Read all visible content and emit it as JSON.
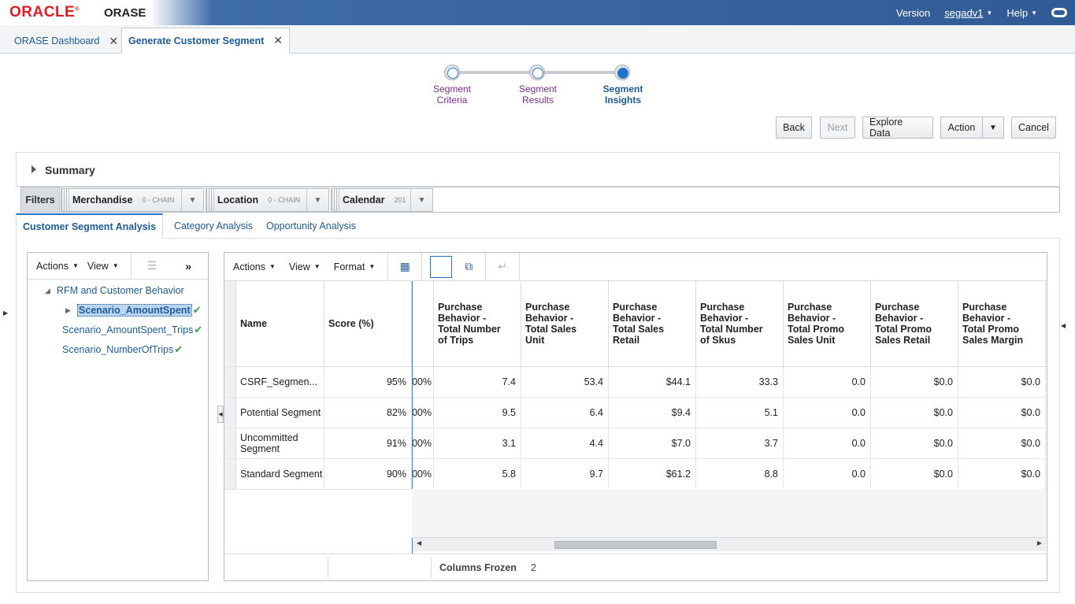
{
  "header": {
    "brand": "ORACLE",
    "app": "ORASE",
    "version_label": "Version",
    "user": "segadv1",
    "help": "Help"
  },
  "doc_tabs": [
    {
      "label": "ORASE Dashboard"
    },
    {
      "label": "Generate Customer Segment"
    }
  ],
  "train": [
    {
      "line1": "Segment",
      "line2": "Criteria"
    },
    {
      "line1": "Segment",
      "line2": "Results"
    },
    {
      "line1": "Segment",
      "line2": "Insights"
    }
  ],
  "buttons": {
    "back": "Back",
    "next": "Next",
    "explore": "Explore Data",
    "action": "Action",
    "cancel": "Cancel"
  },
  "summary": {
    "title": "Summary"
  },
  "filters": {
    "label": "Filters",
    "items": [
      {
        "name": "Merchandise",
        "value": "0 - CHAIN"
      },
      {
        "name": "Location",
        "value": "0 - CHAIN"
      },
      {
        "name": "Calendar",
        "value": "201"
      }
    ]
  },
  "sub_tabs": [
    {
      "label": "Customer Segment Analysis"
    },
    {
      "label": "Category Analysis"
    },
    {
      "label": "Opportunity Analysis"
    }
  ],
  "tree": {
    "toolbar": {
      "actions": "Actions",
      "view": "View"
    },
    "root": "RFM and Customer Behavior",
    "children": [
      {
        "label": "Scenario_AmountSpent"
      },
      {
        "label": "Scenario_AmountSpent_Trips"
      },
      {
        "label": "Scenario_NumberOfTrips"
      }
    ]
  },
  "table": {
    "toolbar": {
      "actions": "Actions",
      "view": "View",
      "format": "Format"
    },
    "columns": [
      {
        "label": "Name"
      },
      {
        "label": "Score (%)"
      },
      {
        "label": ""
      },
      {
        "label": "Purchase Behavior - Total Number of Trips"
      },
      {
        "label": "Purchase Behavior - Total Sales Unit"
      },
      {
        "label": "Purchase Behavior - Total Sales Retail"
      },
      {
        "label": "Purchase Behavior - Total Number of Skus"
      },
      {
        "label": "Purchase Behavior - Total Promo Sales Unit"
      },
      {
        "label": "Purchase Behavior - Total Promo Sales Retail"
      },
      {
        "label": "Purchase Behavior - Total Promo Sales Margin"
      }
    ],
    "rows": [
      {
        "name": "CSRF_Segmen...",
        "score": "95%",
        "partial": "00%",
        "trips": "7.4",
        "sales_unit": "53.4",
        "sales_retail": "$44.1",
        "skus": "33.3",
        "promo_unit": "0.0",
        "promo_retail": "$0.0",
        "promo_margin": "$0.0"
      },
      {
        "name": "Potential Segment",
        "score": "82%",
        "partial": "00%",
        "trips": "9.5",
        "sales_unit": "6.4",
        "sales_retail": "$9.4",
        "skus": "5.1",
        "promo_unit": "0.0",
        "promo_retail": "$0.0",
        "promo_margin": "$0.0"
      },
      {
        "name": "Uncommitted Segment",
        "score": "91%",
        "partial": "00%",
        "trips": "3.1",
        "sales_unit": "4.4",
        "sales_retail": "$7.0",
        "skus": "3.7",
        "promo_unit": "0.0",
        "promo_retail": "$0.0",
        "promo_margin": "$0.0"
      },
      {
        "name": "Standard Segment",
        "score": "90%",
        "partial": "00%",
        "trips": "5.8",
        "sales_unit": "9.7",
        "sales_retail": "$61.2",
        "skus": "8.8",
        "promo_unit": "0.0",
        "promo_retail": "$0.0",
        "promo_margin": "$0.0"
      }
    ],
    "status": {
      "label": "Columns Frozen",
      "value": "2"
    }
  }
}
